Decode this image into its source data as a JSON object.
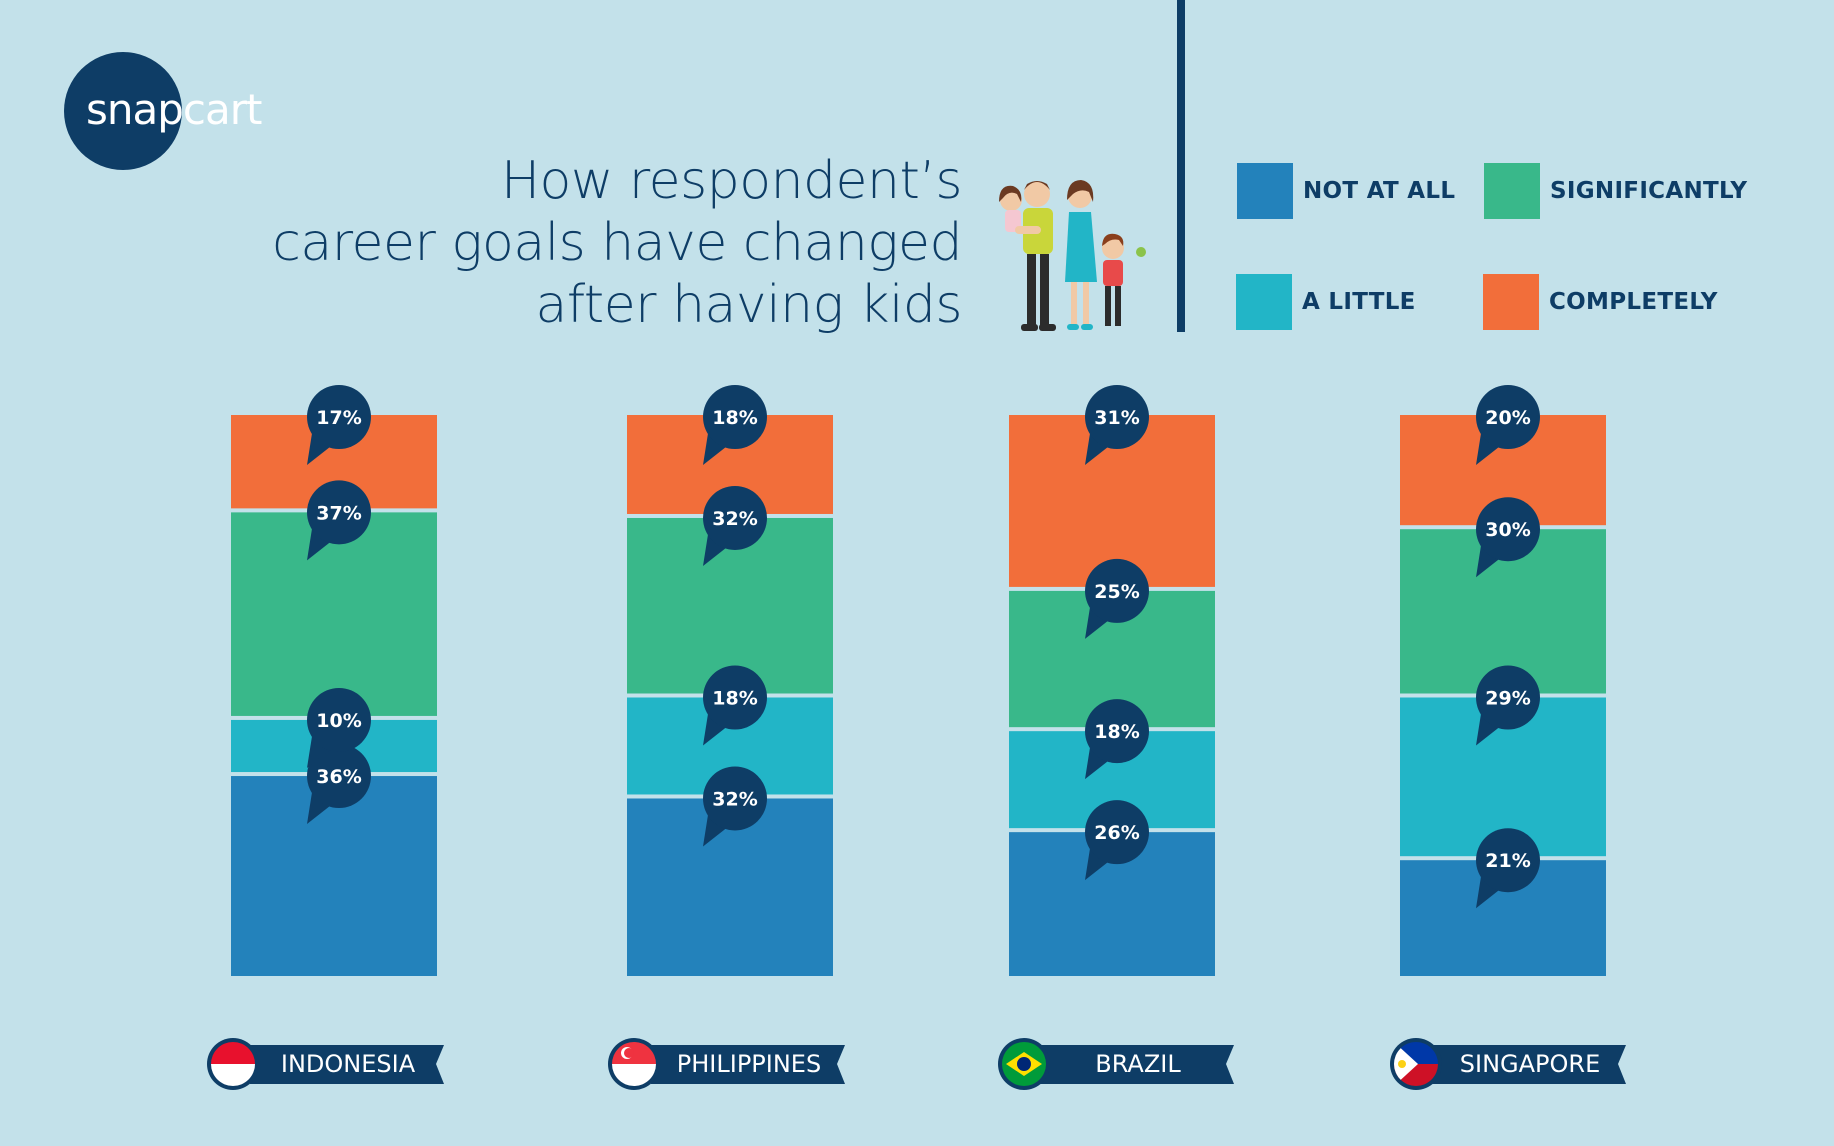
{
  "brand": {
    "logo_text": "snapcart",
    "logo_tail": ""
  },
  "title_lines": [
    "How respondent’s",
    "career goals have changed",
    "after having kids"
  ],
  "colors": {
    "background": "#c3e1ea",
    "navy": "#0e3d66",
    "not_at_all": "#2382bb",
    "a_little": "#22b5c7",
    "significantly": "#39b88a",
    "completely": "#f26e3a"
  },
  "legend": [
    {
      "label": "NOT AT ALL",
      "color": "#2382bb"
    },
    {
      "label": "SIGNIFICANTLY",
      "color": "#39b88a"
    },
    {
      "label": "A LITTLE",
      "color": "#22b5c7"
    },
    {
      "label": "COMPLETELY",
      "color": "#f26e3a"
    }
  ],
  "chart_data": {
    "type": "bar",
    "stacked": true,
    "categories": [
      "INDONESIA",
      "PHILIPPINES",
      "BRAZIL",
      "SINGAPORE"
    ],
    "series": [
      {
        "name": "NOT AT ALL",
        "color": "#2382bb",
        "values": [
          36,
          32,
          26,
          21
        ]
      },
      {
        "name": "A LITTLE",
        "color": "#22b5c7",
        "values": [
          10,
          18,
          18,
          29
        ]
      },
      {
        "name": "SIGNIFICANTLY",
        "color": "#39b88a",
        "values": [
          37,
          32,
          25,
          30
        ]
      },
      {
        "name": "COMPLETELY",
        "color": "#f26e3a",
        "values": [
          17,
          18,
          31,
          20
        ]
      }
    ],
    "data_labels": [
      [
        "36%",
        "32%",
        "26%",
        "21%"
      ],
      [
        "10%",
        "18%",
        "18%",
        "29%"
      ],
      [
        "37%",
        "32%",
        "25%",
        "30%"
      ],
      [
        "17%",
        "18%",
        "31%",
        "20%"
      ]
    ],
    "legend_position": "top-right",
    "grid": false
  },
  "flags": [
    {
      "country": "INDONESIA",
      "icon": "indonesia-flag-icon"
    },
    {
      "country": "PHILIPPINES",
      "icon": "singapore-flag-icon"
    },
    {
      "country": "BRAZIL",
      "icon": "brazil-flag-icon"
    },
    {
      "country": "SINGAPORE",
      "icon": "philippines-flag-icon"
    }
  ]
}
